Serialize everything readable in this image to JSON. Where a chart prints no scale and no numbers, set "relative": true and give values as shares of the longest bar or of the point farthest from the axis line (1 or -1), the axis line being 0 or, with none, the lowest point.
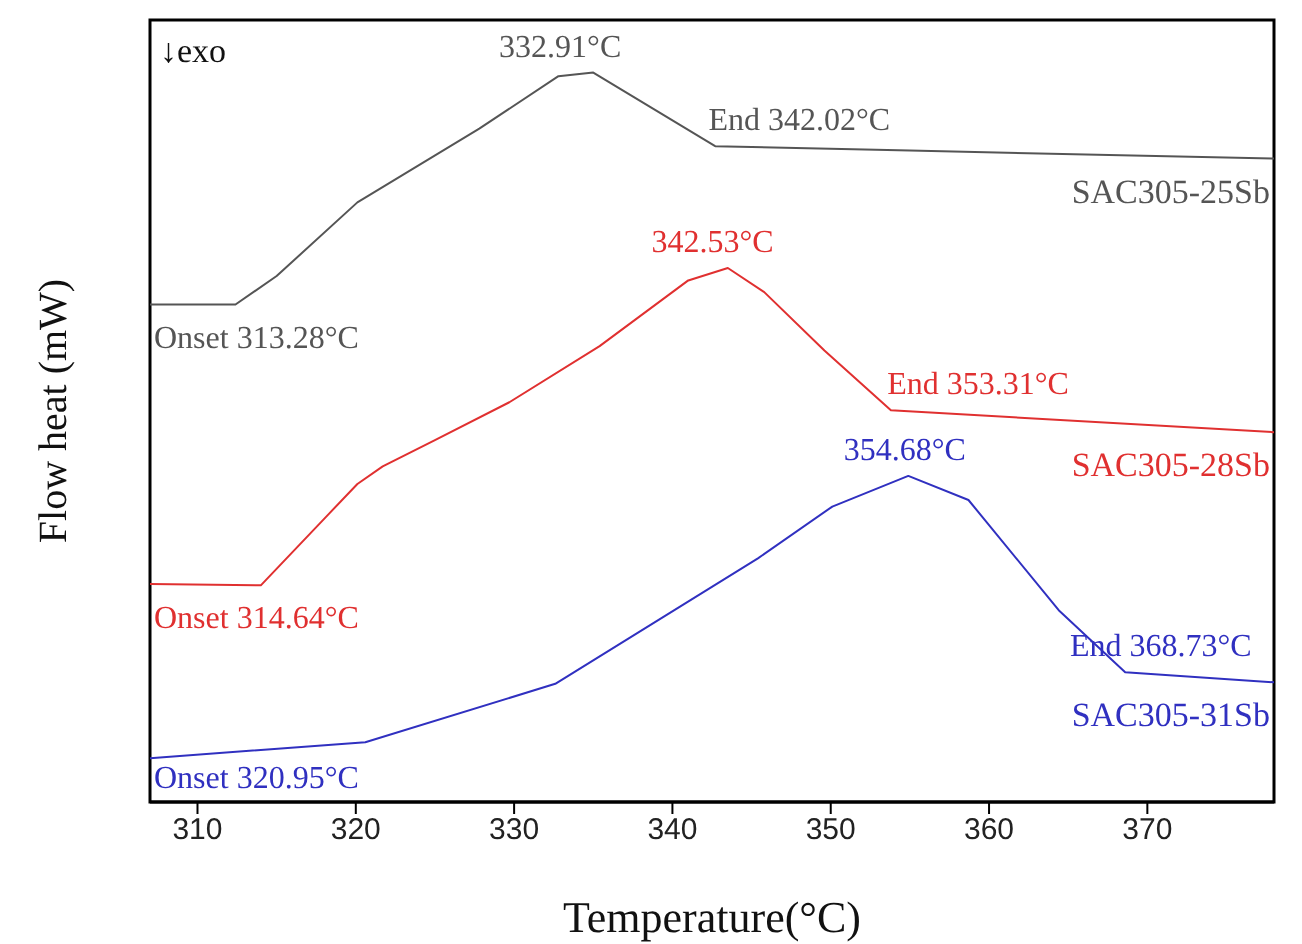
{
  "chart_data": {
    "type": "line",
    "relative": true,
    "xlabel": "Temperature(°C)",
    "ylabel": "Flow heat (mW)",
    "xlim": [
      307,
      378
    ],
    "xticks": [
      310,
      320,
      330,
      340,
      350,
      360,
      370
    ],
    "marker": "none",
    "line_style": "solid",
    "series": [
      {
        "name": "SAC305-25Sb",
        "color": "#555555",
        "x": [
          307,
          312.4,
          315.0,
          320.1,
          327.8,
          332.8,
          335.0,
          342.7,
          355,
          378
        ],
        "values": [
          0.682,
          0.682,
          0.721,
          0.822,
          0.923,
          0.995,
          1.0,
          0.899,
          0.893,
          0.882
        ]
      },
      {
        "name": "SAC305-28Sb",
        "color": "#e03030",
        "x": [
          307,
          314.0,
          318.3,
          320.1,
          321.7,
          325.0,
          329.7,
          335.4,
          341.0,
          343.5,
          345.8,
          349.6,
          353.8,
          378
        ],
        "values": [
          0.299,
          0.297,
          0.395,
          0.436,
          0.46,
          0.496,
          0.548,
          0.625,
          0.715,
          0.732,
          0.699,
          0.619,
          0.537,
          0.507
        ]
      },
      {
        "name": "SAC305-31Sb",
        "color": "#3030c0",
        "x": [
          307,
          320.6,
          332.6,
          345.4,
          350.1,
          354.9,
          358.7,
          364.4,
          368.6,
          378
        ],
        "values": [
          0.06,
          0.082,
          0.162,
          0.334,
          0.405,
          0.447,
          0.414,
          0.263,
          0.178,
          0.164
        ]
      }
    ],
    "annotations": [
      "↓exo",
      {
        "text": "332.91°C",
        "x": 332.91,
        "y": 1.0
      },
      {
        "text": "Onset 313.28°C",
        "x": 313.28,
        "y": 0.682
      },
      {
        "text": "End 342.02°C",
        "x": 342.02,
        "y": 0.899
      },
      {
        "text": "342.53°C",
        "x": 342.53,
        "y": 0.732
      },
      {
        "text": "Onset 314.64°C",
        "x": 314.64,
        "y": 0.299
      },
      {
        "text": "End 353.31°C",
        "x": 353.31,
        "y": 0.537
      },
      {
        "text": "354.68°C",
        "x": 354.68,
        "y": 0.447
      },
      {
        "text": "Onset 320.95°C",
        "x": 320.95,
        "y": 0.08
      },
      {
        "text": "End 368.73°C",
        "x": 368.73,
        "y": 0.178
      }
    ]
  }
}
